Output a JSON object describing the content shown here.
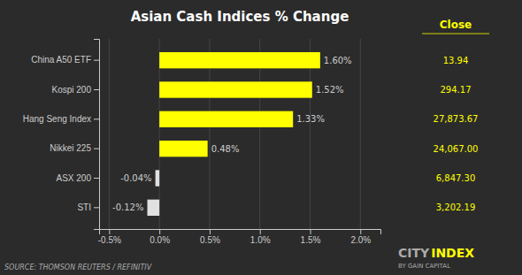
{
  "chart_data": {
    "type": "bar",
    "orientation": "horizontal",
    "title": "Asian Cash Indices % Change",
    "categories": [
      "China A50 ETF",
      "Kospi 200",
      "Hang Seng Index",
      "Nikkei 225",
      "ASX 200",
      "STI"
    ],
    "values": [
      1.6,
      1.52,
      1.33,
      0.48,
      -0.04,
      -0.12
    ],
    "value_labels": [
      "1.60%",
      "1.52%",
      "1.33%",
      "0.48%",
      "-0.04%",
      "-0.12%"
    ],
    "data_labels": true,
    "colors": [
      "#ffff00",
      "#ffff00",
      "#ffff00",
      "#ffff00",
      "#e0e0e0",
      "#e0e0e0"
    ],
    "xlim": [
      -0.6,
      2.2
    ],
    "xticks": [
      {
        "value": -0.5,
        "label": "-0.5%"
      },
      {
        "value": 0.0,
        "label": "0.0%"
      },
      {
        "value": 0.5,
        "label": "0.5%"
      },
      {
        "value": 1.0,
        "label": "1.0%"
      },
      {
        "value": 1.5,
        "label": "1.5%"
      },
      {
        "value": 2.0,
        "label": "2.0%"
      }
    ],
    "grid": true,
    "annotations": [
      "Close",
      "13.94",
      "294.17",
      "27,873.67",
      "24,067.00",
      "6,847.30",
      "3,202.19",
      "SOURCE: THOMSON REUTERS / REFINITIV",
      "CITY",
      "INDEX",
      "BY GAIN CAPITAL"
    ]
  }
}
